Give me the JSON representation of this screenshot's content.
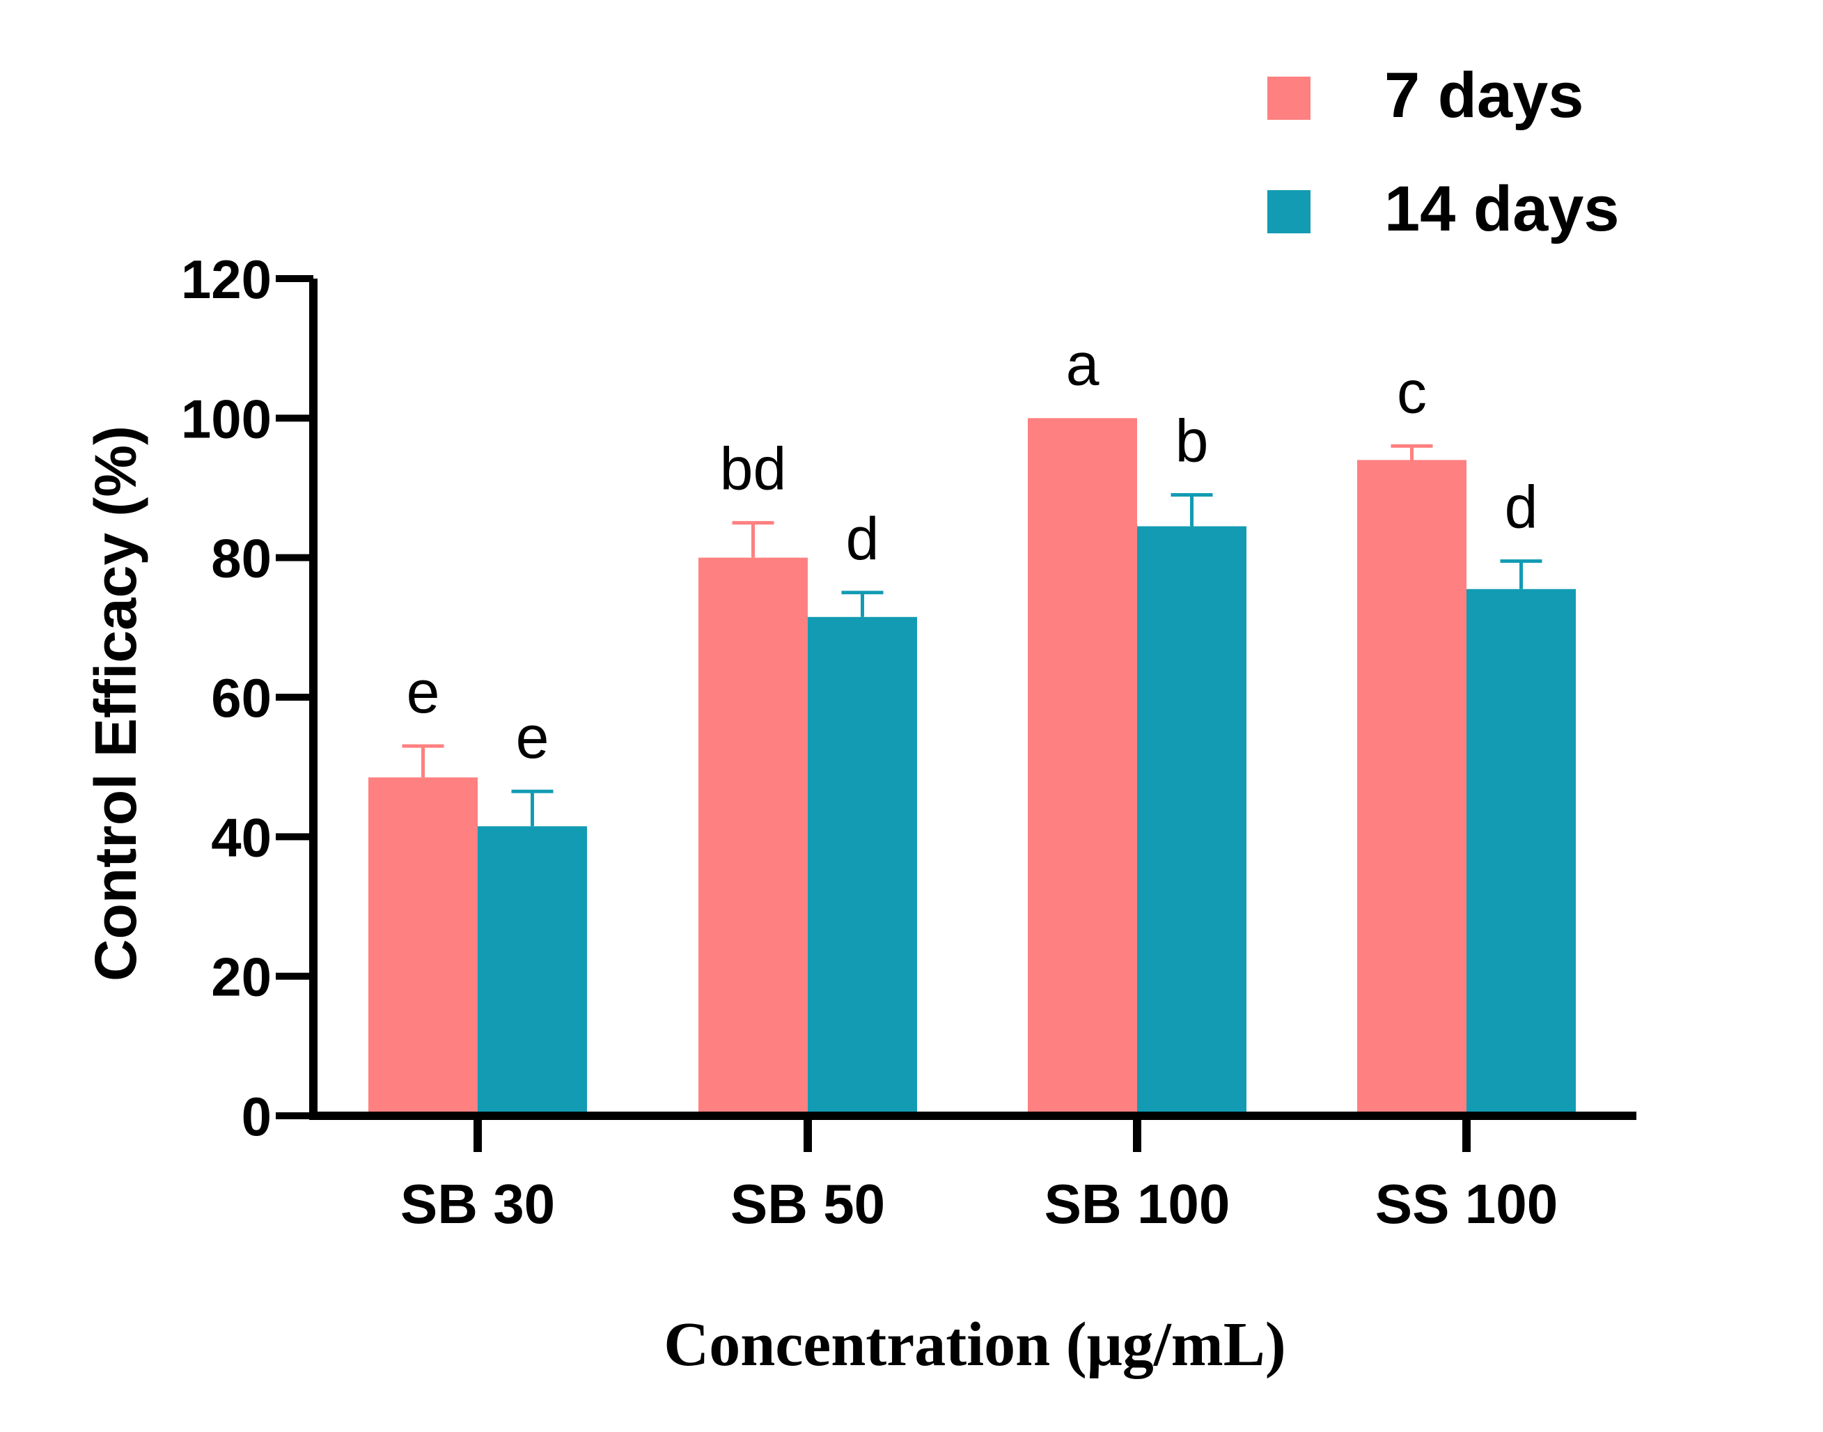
{
  "chart_data": {
    "type": "bar",
    "title": "",
    "xlabel": "Concentration (μg/mL)",
    "ylabel": "Control Efficacy (%)",
    "ylim": [
      0,
      120
    ],
    "yticks": [
      0,
      20,
      40,
      60,
      80,
      100,
      120
    ],
    "categories": [
      "SB 30",
      "SB 50",
      "SB 100",
      "SS 100"
    ],
    "series": [
      {
        "name": "7 days",
        "color": "#FF8080",
        "values": [
          48.5,
          80,
          100,
          94
        ],
        "errors": [
          4.5,
          5,
          0,
          2
        ],
        "letters": [
          "e",
          "bd",
          "a",
          "c"
        ]
      },
      {
        "name": "14 days",
        "color": "#129BB3",
        "values": [
          41.5,
          71.5,
          84.5,
          75.5
        ],
        "errors": [
          5,
          3.5,
          4.5,
          4
        ],
        "letters": [
          "e",
          "d",
          "b",
          "d"
        ]
      }
    ],
    "legend_position": "top-right"
  }
}
